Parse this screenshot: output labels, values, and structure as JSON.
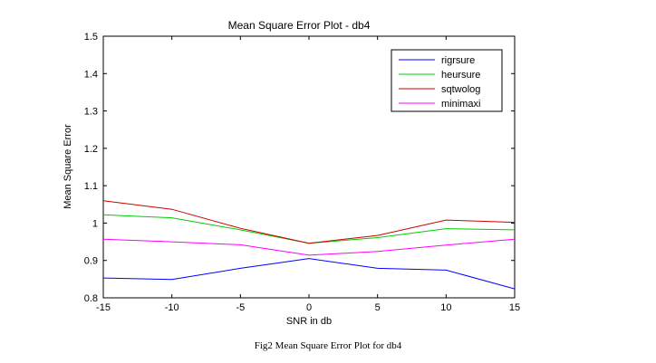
{
  "caption": "Fig2 Mean Square Error Plot for db4",
  "chart_data": {
    "type": "line",
    "title": "Mean Square Error  Plot - db4",
    "xlabel": "SNR in db",
    "ylabel": "Mean Square Error",
    "xlim": [
      -15,
      15
    ],
    "ylim": [
      0.8,
      1.5
    ],
    "xticks": [
      -15,
      -10,
      -5,
      0,
      5,
      10,
      15
    ],
    "yticks": [
      0.8,
      0.9,
      1,
      1.1,
      1.2,
      1.3,
      1.4,
      1.5
    ],
    "grid": false,
    "legend_position": "top-right",
    "x": [
      -15,
      -10,
      -5,
      0,
      5,
      10,
      15
    ],
    "series": [
      {
        "name": "rigrsure",
        "color": "#0000ff",
        "values": [
          0.853,
          0.849,
          0.879,
          0.905,
          0.879,
          0.874,
          0.824
        ]
      },
      {
        "name": "heursure",
        "color": "#00cc00",
        "values": [
          1.022,
          1.014,
          0.982,
          0.946,
          0.961,
          0.985,
          0.982
        ]
      },
      {
        "name": "sqtwolog",
        "color": "#cc0000",
        "values": [
          1.06,
          1.037,
          0.986,
          0.946,
          0.967,
          1.008,
          1.002
        ]
      },
      {
        "name": "minimaxi",
        "color": "#ff00ff",
        "values": [
          0.957,
          0.95,
          0.942,
          0.914,
          0.924,
          0.941,
          0.957
        ]
      }
    ]
  }
}
